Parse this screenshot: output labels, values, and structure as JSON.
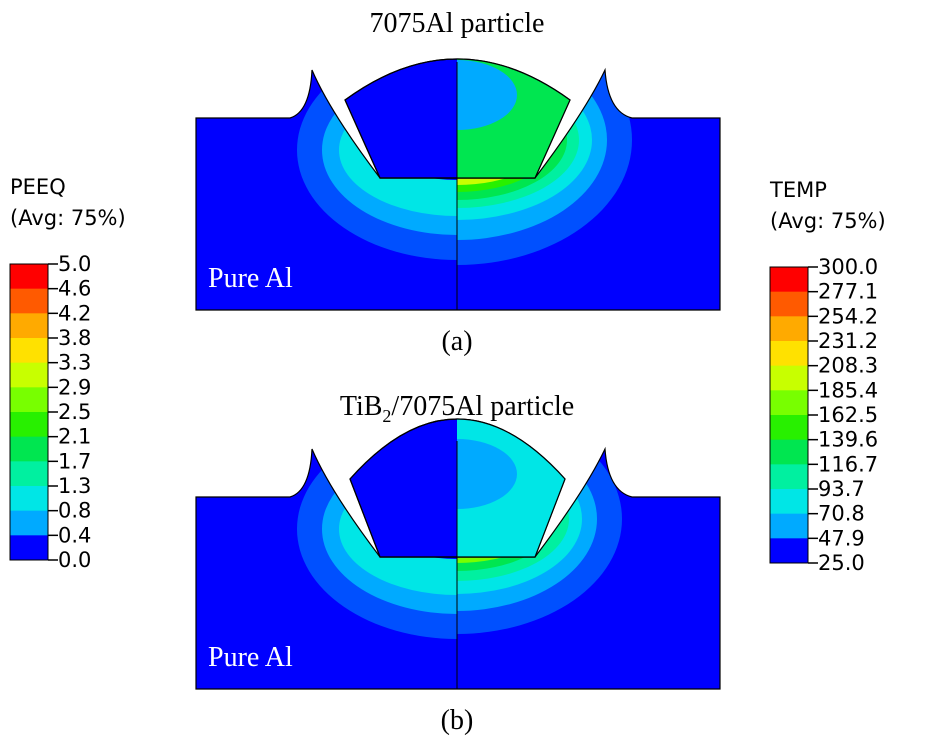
{
  "left_legend": {
    "title": "PEEQ",
    "subtitle": "(Avg: 75%)",
    "labels": [
      "5.0",
      "4.6",
      "4.2",
      "3.8",
      "3.3",
      "2.9",
      "2.5",
      "2.1",
      "1.7",
      "1.3",
      "0.8",
      "0.4",
      "0.0"
    ]
  },
  "right_legend": {
    "title": "TEMP",
    "subtitle": "(Avg: 75%)",
    "labels": [
      "300.0",
      "277.1",
      "254.2",
      "231.2",
      "208.3",
      "185.4",
      "162.5",
      "139.6",
      "116.7",
      "93.7",
      "70.8",
      "47.9",
      "25.0"
    ]
  },
  "panels": [
    {
      "title_parts": [
        "7075Al particle"
      ],
      "substrate_label": "Pure Al",
      "caption": "(a)"
    },
    {
      "title_parts": [
        "TiB",
        "2",
        "/7075Al particle"
      ],
      "substrate_label": "Pure Al",
      "caption": "(b)"
    }
  ]
}
